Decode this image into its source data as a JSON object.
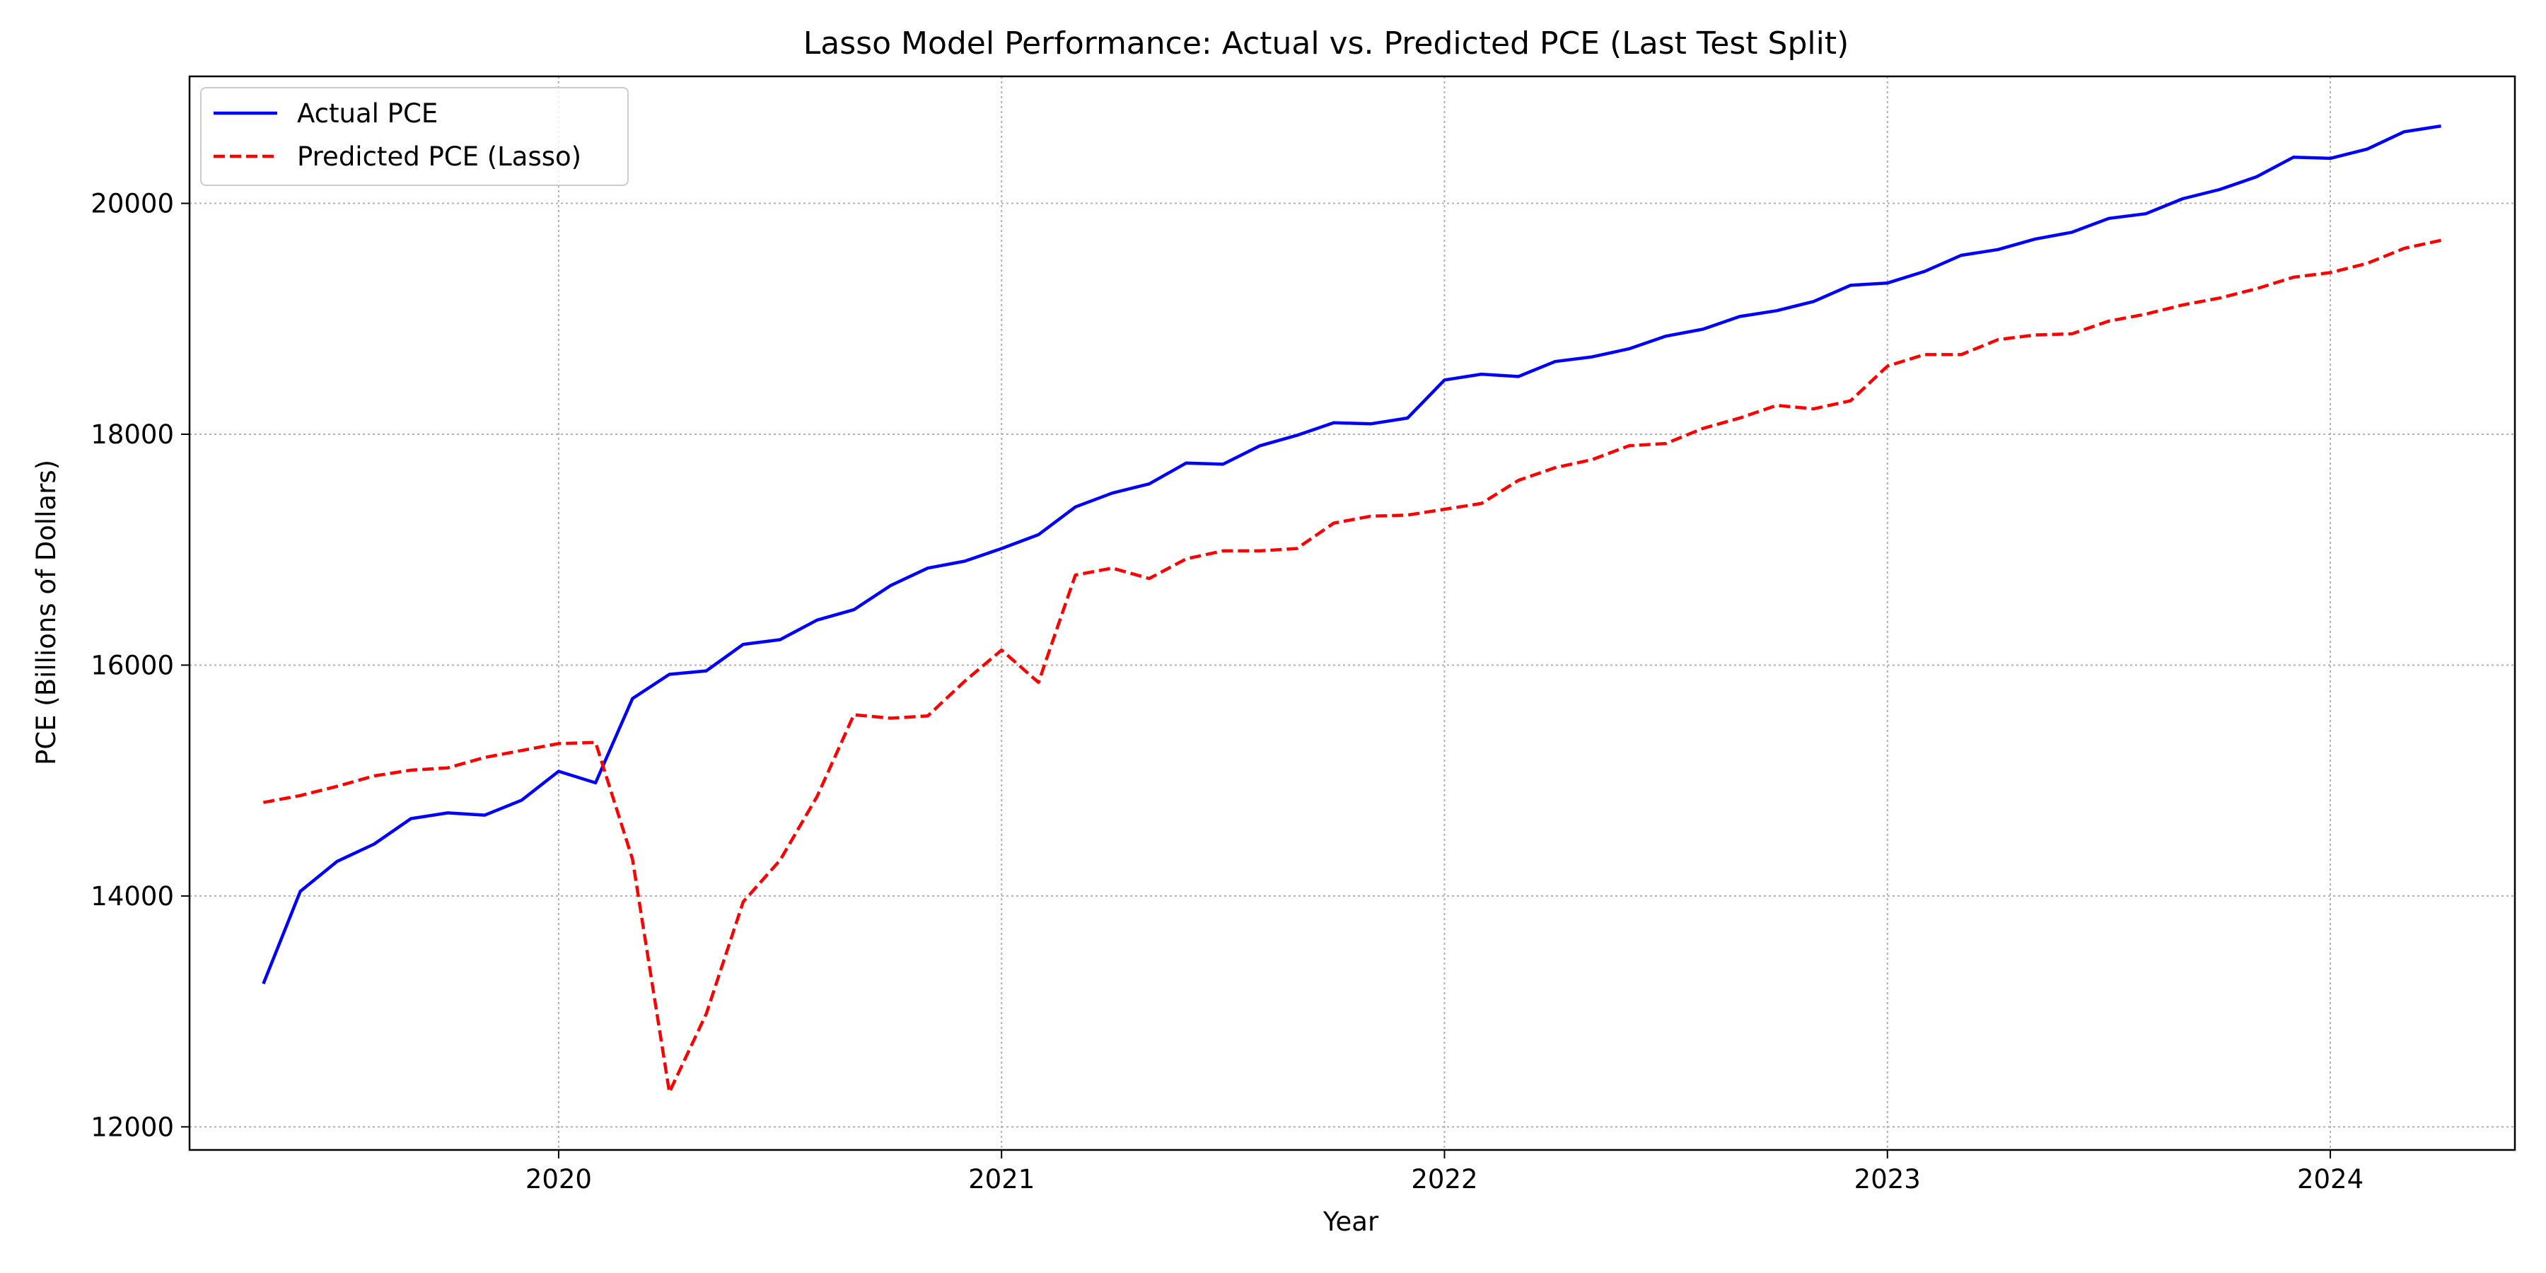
{
  "chart_data": {
    "type": "line",
    "title": "Lasso Model Performance: Actual vs. Predicted PCE (Last Test Split)",
    "xlabel": "Year",
    "ylabel": "PCE (Billions of Dollars)",
    "x_ticks": [
      "2020",
      "2021",
      "2022",
      "2023",
      "2024"
    ],
    "y_ticks": [
      "12000",
      "14000",
      "16000",
      "18000",
      "20000"
    ],
    "xlim": [
      "2019-03-01",
      "2024-06-01"
    ],
    "ylim": [
      11800,
      21100
    ],
    "grid": true,
    "legend_position": "upper-left",
    "x": [
      "2019-05",
      "2019-06",
      "2019-07",
      "2019-08",
      "2019-09",
      "2019-10",
      "2019-11",
      "2019-12",
      "2020-01",
      "2020-02",
      "2020-03",
      "2020-04",
      "2020-05",
      "2020-06",
      "2020-07",
      "2020-08",
      "2020-09",
      "2020-10",
      "2020-11",
      "2020-12",
      "2021-01",
      "2021-02",
      "2021-03",
      "2021-04",
      "2021-05",
      "2021-06",
      "2021-07",
      "2021-08",
      "2021-09",
      "2021-10",
      "2021-11",
      "2021-12",
      "2022-01",
      "2022-02",
      "2022-03",
      "2022-04",
      "2022-05",
      "2022-06",
      "2022-07",
      "2022-08",
      "2022-09",
      "2022-10",
      "2022-11",
      "2022-12",
      "2023-01",
      "2023-02",
      "2023-03",
      "2023-04",
      "2023-05",
      "2023-06",
      "2023-07",
      "2023-08",
      "2023-09",
      "2023-10",
      "2023-11",
      "2023-12",
      "2024-01",
      "2024-02",
      "2024-03",
      "2024-04"
    ],
    "series": [
      {
        "name": "Actual PCE",
        "color": "#0000ff",
        "style": "solid",
        "values": [
          13240,
          14040,
          14300,
          14450,
          14670,
          14720,
          14700,
          14830,
          15080,
          14980,
          15710,
          15920,
          15950,
          16180,
          16220,
          16390,
          16480,
          16690,
          16840,
          16900,
          17010,
          17130,
          17370,
          17490,
          17570,
          17750,
          17740,
          17900,
          17990,
          18100,
          18090,
          18140,
          18470,
          18520,
          18500,
          18630,
          18670,
          18740,
          18850,
          18910,
          19020,
          19070,
          19150,
          19290,
          19310,
          19410,
          19550,
          19600,
          19690,
          19750,
          19870,
          19910,
          20040,
          20120,
          20230,
          20400,
          20390,
          20470,
          20620,
          20670
        ]
      },
      {
        "name": "Predicted PCE (Lasso)",
        "color": "#ff0000",
        "style": "dashed",
        "values": [
          14810,
          14870,
          14950,
          15040,
          15090,
          15110,
          15200,
          15260,
          15320,
          15330,
          14320,
          12300,
          12980,
          13950,
          14310,
          14860,
          15570,
          15540,
          15560,
          15860,
          16130,
          15850,
          16780,
          16840,
          16750,
          16920,
          16990,
          16990,
          17010,
          17230,
          17290,
          17300,
          17350,
          17400,
          17600,
          17710,
          17780,
          17900,
          17920,
          18050,
          18140,
          18250,
          18220,
          18290,
          18590,
          18690,
          18690,
          18820,
          18860,
          18870,
          18980,
          19040,
          19120,
          19180,
          19260,
          19360,
          19400,
          19480,
          19610,
          19680
        ]
      }
    ]
  }
}
